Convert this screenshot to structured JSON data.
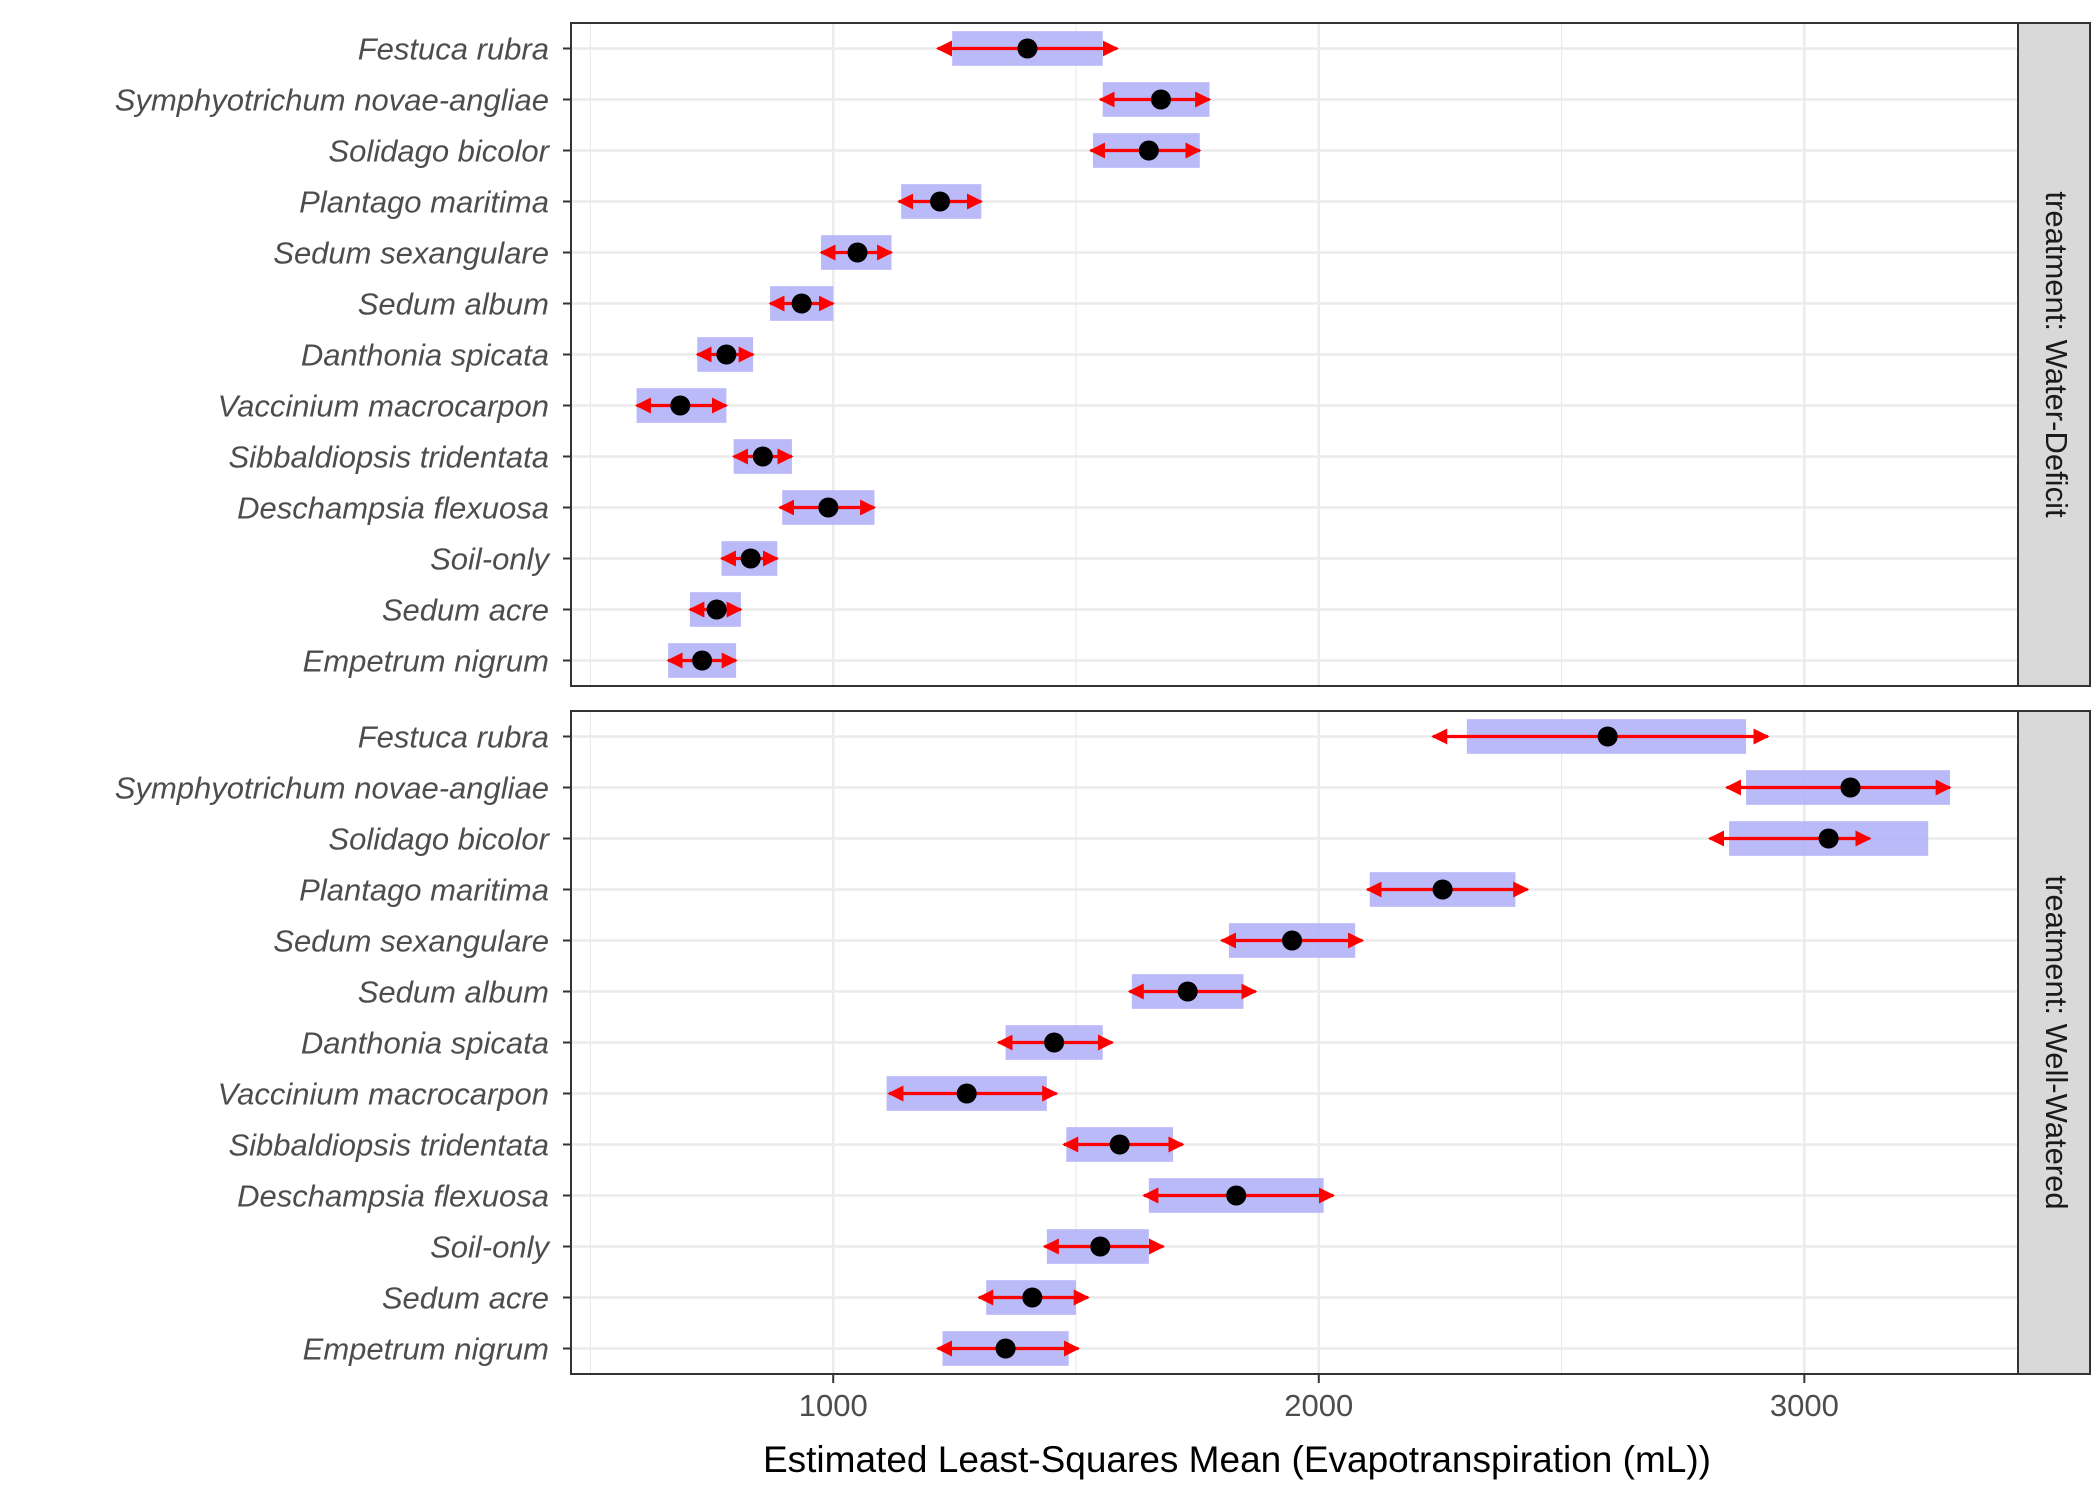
{
  "chart_data": {
    "type": "scatter",
    "xlabel": "Estimated Least-Squares Mean (Evapotranspiration (mL))",
    "ylabel": "",
    "xlim": [
      460,
      3440
    ],
    "xticks": [
      1000,
      2000,
      3000
    ],
    "grid": true,
    "categories": [
      "Festuca rubra",
      "Symphyotrichum novae-angliae",
      "Solidago bicolor",
      "Plantago maritima",
      "Sedum sexangulare",
      "Sedum album",
      "Danthonia spicata",
      "Vaccinium macrocarpon",
      "Sibbaldiopsis tridentata",
      "Deschampsia flexuosa",
      "Soil-only",
      "Sedum acre",
      "Empetrum nigrum"
    ],
    "panels": [
      {
        "strip": "treatment: Water-Deficit",
        "points": [
          {
            "mean": 1400,
            "ci_low": 1245,
            "ci_high": 1555,
            "arrow_low": 1215,
            "arrow_high": 1585
          },
          {
            "mean": 1675,
            "ci_low": 1555,
            "ci_high": 1775,
            "arrow_low": 1550,
            "arrow_high": 1775
          },
          {
            "mean": 1650,
            "ci_low": 1535,
            "ci_high": 1755,
            "arrow_low": 1530,
            "arrow_high": 1755
          },
          {
            "mean": 1220,
            "ci_low": 1140,
            "ci_high": 1305,
            "arrow_low": 1135,
            "arrow_high": 1305
          },
          {
            "mean": 1050,
            "ci_low": 975,
            "ci_high": 1120,
            "arrow_low": 975,
            "arrow_high": 1120
          },
          {
            "mean": 935,
            "ci_low": 870,
            "ci_high": 1000,
            "arrow_low": 870,
            "arrow_high": 1000
          },
          {
            "mean": 780,
            "ci_low": 720,
            "ci_high": 835,
            "arrow_low": 720,
            "arrow_high": 835
          },
          {
            "mean": 685,
            "ci_low": 595,
            "ci_high": 780,
            "arrow_low": 595,
            "arrow_high": 780
          },
          {
            "mean": 855,
            "ci_low": 795,
            "ci_high": 915,
            "arrow_low": 795,
            "arrow_high": 915
          },
          {
            "mean": 990,
            "ci_low": 895,
            "ci_high": 1085,
            "arrow_low": 890,
            "arrow_high": 1085
          },
          {
            "mean": 830,
            "ci_low": 770,
            "ci_high": 885,
            "arrow_low": 770,
            "arrow_high": 885
          },
          {
            "mean": 760,
            "ci_low": 705,
            "ci_high": 810,
            "arrow_low": 705,
            "arrow_high": 810
          },
          {
            "mean": 730,
            "ci_low": 660,
            "ci_high": 800,
            "arrow_low": 660,
            "arrow_high": 800
          }
        ]
      },
      {
        "strip": "treatment: Well-Watered",
        "points": [
          {
            "mean": 2595,
            "ci_low": 2305,
            "ci_high": 2880,
            "arrow_low": 2235,
            "arrow_high": 2925
          },
          {
            "mean": 3095,
            "ci_low": 2880,
            "ci_high": 3300,
            "arrow_low": 2840,
            "arrow_high": 3300
          },
          {
            "mean": 3050,
            "ci_low": 2845,
            "ci_high": 3255,
            "arrow_low": 2805,
            "arrow_high": 3135
          },
          {
            "mean": 2255,
            "ci_low": 2105,
            "ci_high": 2405,
            "arrow_low": 2100,
            "arrow_high": 2430
          },
          {
            "mean": 1945,
            "ci_low": 1815,
            "ci_high": 2075,
            "arrow_low": 1800,
            "arrow_high": 2090
          },
          {
            "mean": 1730,
            "ci_low": 1615,
            "ci_high": 1845,
            "arrow_low": 1610,
            "arrow_high": 1870
          },
          {
            "mean": 1455,
            "ci_low": 1355,
            "ci_high": 1555,
            "arrow_low": 1340,
            "arrow_high": 1575
          },
          {
            "mean": 1275,
            "ci_low": 1110,
            "ci_high": 1440,
            "arrow_low": 1115,
            "arrow_high": 1460
          },
          {
            "mean": 1590,
            "ci_low": 1480,
            "ci_high": 1700,
            "arrow_low": 1475,
            "arrow_high": 1720
          },
          {
            "mean": 1830,
            "ci_low": 1650,
            "ci_high": 2010,
            "arrow_low": 1640,
            "arrow_high": 2030
          },
          {
            "mean": 1550,
            "ci_low": 1440,
            "ci_high": 1650,
            "arrow_low": 1435,
            "arrow_high": 1680
          },
          {
            "mean": 1410,
            "ci_low": 1315,
            "ci_high": 1500,
            "arrow_low": 1300,
            "arrow_high": 1525
          },
          {
            "mean": 1355,
            "ci_low": 1225,
            "ci_high": 1485,
            "arrow_low": 1215,
            "arrow_high": 1505
          }
        ]
      }
    ]
  },
  "colors": {
    "ci_band": "#b3b3f7",
    "arrow": "#ff0000",
    "point": "#000000",
    "grid": "#ebebeb",
    "strip_fill": "#d9d9d9",
    "text": "#4d4d4d"
  }
}
